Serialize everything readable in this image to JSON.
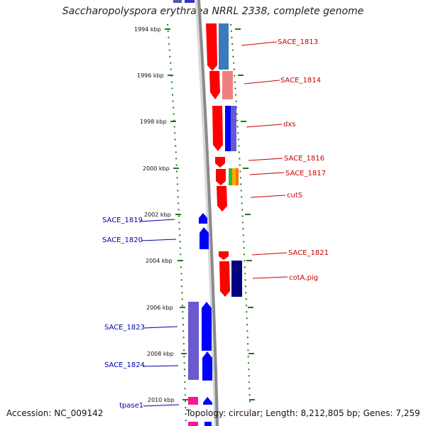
{
  "title": "Saccharopolyspora erythraea NRRL 2338, complete genome",
  "accession": "Accession: NC_009142",
  "topology": "Topology: circular; Length: 8,212,805 bp; Genes: 7,259",
  "colors": {
    "forward": "#ff0000",
    "reverse": "#0000ff",
    "backbone": "#888888",
    "tick": "#227722"
  },
  "ticks": [
    "1994 kbp",
    "1996 kbp",
    "1998 kbp",
    "2000 kbp",
    "2002 kbp",
    "2004 kbp",
    "2006 kbp",
    "2008 kbp",
    "2010 kbp"
  ],
  "forward_labels": [
    "SACE_1813",
    "SACE_1814",
    "dxs",
    "SACE_1816",
    "SACE_1817",
    "cutS",
    "SACE_1821",
    "cotA,pig"
  ],
  "reverse_labels": [
    "SACE_1819",
    "SACE_1820",
    "SACE_1823",
    "SACE_1824",
    "tpase1"
  ]
}
